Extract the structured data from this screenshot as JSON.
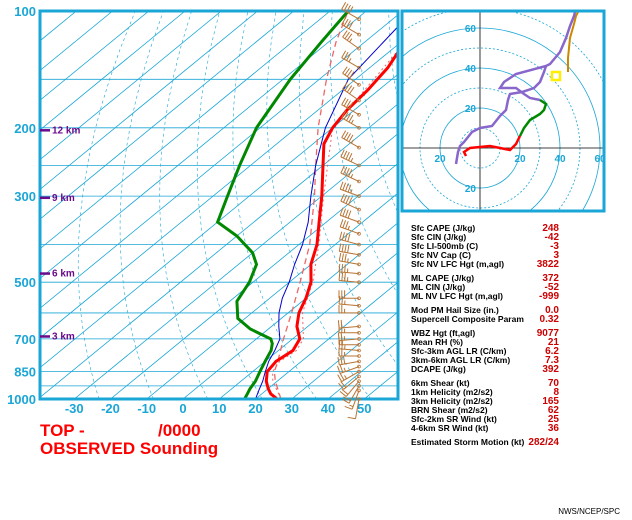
{
  "chart_data": {
    "type": "skew-t",
    "title_line1": "TOP -",
    "title_valid": "/0000",
    "title_line2": "OBSERVED Sounding",
    "pressure_ticks": [
      100,
      200,
      300,
      500,
      700,
      850,
      1000
    ],
    "temperature_ticks": [
      -30,
      -20,
      -10,
      0,
      10,
      20,
      30,
      40,
      50
    ],
    "height_markers": [
      {
        "label": "12 km",
        "p": 203
      },
      {
        "label": "9 km",
        "p": 303
      },
      {
        "label": "6 km",
        "p": 475
      },
      {
        "label": "3 km",
        "p": 690
      }
    ],
    "temperature": [
      {
        "p": 1000,
        "t": 26
      },
      {
        "p": 970,
        "t": 22.5
      },
      {
        "p": 940,
        "t": 20
      },
      {
        "p": 900,
        "t": 17
      },
      {
        "p": 850,
        "t": 14
      },
      {
        "p": 800,
        "t": 13
      },
      {
        "p": 750,
        "t": 14
      },
      {
        "p": 700,
        "t": 12
      },
      {
        "p": 650,
        "t": 7
      },
      {
        "p": 600,
        "t": 3
      },
      {
        "p": 550,
        "t": 0
      },
      {
        "p": 500,
        "t": -4
      },
      {
        "p": 450,
        "t": -10
      },
      {
        "p": 400,
        "t": -15
      },
      {
        "p": 350,
        "t": -22
      },
      {
        "p": 300,
        "t": -30
      },
      {
        "p": 250,
        "t": -40
      },
      {
        "p": 220,
        "t": -47
      },
      {
        "p": 200,
        "t": -50
      },
      {
        "p": 180,
        "t": -52
      },
      {
        "p": 160,
        "t": -53
      },
      {
        "p": 140,
        "t": -55
      },
      {
        "p": 120,
        "t": -59
      },
      {
        "p": 110,
        "t": -61
      },
      {
        "p": 102,
        "t": -60
      },
      {
        "p": 100,
        "t": -62
      }
    ],
    "dewpoint": [
      {
        "p": 1000,
        "t": 17
      },
      {
        "p": 970,
        "t": 16
      },
      {
        "p": 940,
        "t": 15
      },
      {
        "p": 900,
        "t": 14
      },
      {
        "p": 850,
        "t": 12
      },
      {
        "p": 800,
        "t": 10
      },
      {
        "p": 750,
        "t": 8
      },
      {
        "p": 720,
        "t": 6
      },
      {
        "p": 700,
        "t": 4
      },
      {
        "p": 660,
        "t": -5
      },
      {
        "p": 620,
        "t": -12
      },
      {
        "p": 560,
        "t": -18
      },
      {
        "p": 500,
        "t": -21
      },
      {
        "p": 450,
        "t": -25
      },
      {
        "p": 420,
        "t": -30
      },
      {
        "p": 380,
        "t": -40
      },
      {
        "p": 350,
        "t": -50
      },
      {
        "p": 300,
        "t": -56
      },
      {
        "p": 250,
        "t": -63
      },
      {
        "p": 200,
        "t": -71
      },
      {
        "p": 150,
        "t": -78
      },
      {
        "p": 120,
        "t": -82
      },
      {
        "p": 100,
        "t": -85
      }
    ],
    "parcel_trace": [
      {
        "p": 1000,
        "t": 27
      },
      {
        "p": 900,
        "t": 19.5
      },
      {
        "p": 850,
        "t": 16
      },
      {
        "p": 800,
        "t": 13.5
      },
      {
        "p": 700,
        "t": 7.5
      },
      {
        "p": 600,
        "t": 1
      },
      {
        "p": 500,
        "t": -7
      },
      {
        "p": 400,
        "t": -17
      },
      {
        "p": 300,
        "t": -32
      },
      {
        "p": 250,
        "t": -42
      },
      {
        "p": 200,
        "t": -54
      },
      {
        "p": 150,
        "t": -68
      },
      {
        "p": 120,
        "t": -78
      },
      {
        "p": 100,
        "t": -85
      }
    ],
    "virtual_temperature": [
      {
        "p": 1000,
        "t": 27
      },
      {
        "p": 900,
        "t": 18.8
      },
      {
        "p": 850,
        "t": 15.5
      },
      {
        "p": 800,
        "t": 14
      },
      {
        "p": 750,
        "t": 15
      },
      {
        "p": 700,
        "t": 13
      },
      {
        "p": 600,
        "t": 4
      },
      {
        "p": 500,
        "t": -3.5
      },
      {
        "p": 400,
        "t": -14.5
      },
      {
        "p": 300,
        "t": -29.5
      },
      {
        "p": 200,
        "t": -50
      },
      {
        "p": 100,
        "t": -62
      }
    ],
    "wetbulb": [
      {
        "p": 1000,
        "t": 20
      },
      {
        "p": 950,
        "t": 18
      },
      {
        "p": 900,
        "t": 16
      },
      {
        "p": 850,
        "t": 13.5
      },
      {
        "p": 800,
        "t": 11
      },
      {
        "p": 750,
        "t": 9
      },
      {
        "p": 700,
        "t": 6.5
      },
      {
        "p": 650,
        "t": 2
      },
      {
        "p": 600,
        "t": -2.5
      },
      {
        "p": 550,
        "t": -6.5
      },
      {
        "p": 500,
        "t": -10
      },
      {
        "p": 450,
        "t": -14.5
      },
      {
        "p": 400,
        "t": -19
      },
      {
        "p": 350,
        "t": -25
      },
      {
        "p": 300,
        "t": -33
      },
      {
        "p": 250,
        "t": -42
      },
      {
        "p": 200,
        "t": -52
      },
      {
        "p": 150,
        "t": -62
      },
      {
        "p": 110,
        "t": -66
      },
      {
        "p": 100,
        "t": -67
      }
    ],
    "wind_barbs": [
      {
        "p": 1000,
        "dir": 190,
        "kt": 10
      },
      {
        "p": 950,
        "dir": 200,
        "kt": 15
      },
      {
        "p": 925,
        "dir": 210,
        "kt": 20
      },
      {
        "p": 900,
        "dir": 220,
        "kt": 20
      },
      {
        "p": 875,
        "dir": 230,
        "kt": 20
      },
      {
        "p": 850,
        "dir": 240,
        "kt": 25
      },
      {
        "p": 825,
        "dir": 250,
        "kt": 25
      },
      {
        "p": 800,
        "dir": 260,
        "kt": 30
      },
      {
        "p": 775,
        "dir": 270,
        "kt": 25
      },
      {
        "p": 750,
        "dir": 275,
        "kt": 25
      },
      {
        "p": 725,
        "dir": 270,
        "kt": 20
      },
      {
        "p": 700,
        "dir": 265,
        "kt": 25
      },
      {
        "p": 675,
        "dir": 270,
        "kt": 25
      },
      {
        "p": 650,
        "dir": 265,
        "kt": 20
      },
      {
        "p": 600,
        "dir": 270,
        "kt": 25
      },
      {
        "p": 575,
        "dir": 275,
        "kt": 25
      },
      {
        "p": 550,
        "dir": 270,
        "kt": 30
      },
      {
        "p": 500,
        "dir": 275,
        "kt": 35
      },
      {
        "p": 475,
        "dir": 275,
        "kt": 35
      },
      {
        "p": 450,
        "dir": 280,
        "kt": 35
      },
      {
        "p": 425,
        "dir": 280,
        "kt": 40
      },
      {
        "p": 400,
        "dir": 285,
        "kt": 40
      },
      {
        "p": 375,
        "dir": 290,
        "kt": 35
      },
      {
        "p": 350,
        "dir": 290,
        "kt": 40
      },
      {
        "p": 325,
        "dir": 295,
        "kt": 40
      },
      {
        "p": 300,
        "dir": 290,
        "kt": 45
      },
      {
        "p": 275,
        "dir": 295,
        "kt": 45
      },
      {
        "p": 250,
        "dir": 295,
        "kt": 45
      },
      {
        "p": 225,
        "dir": 300,
        "kt": 45
      },
      {
        "p": 200,
        "dir": 300,
        "kt": 45
      },
      {
        "p": 185,
        "dir": 300,
        "kt": 40
      },
      {
        "p": 170,
        "dir": 305,
        "kt": 40
      },
      {
        "p": 155,
        "dir": 305,
        "kt": 40
      },
      {
        "p": 140,
        "dir": 300,
        "kt": 35
      },
      {
        "p": 125,
        "dir": 305,
        "kt": 35
      },
      {
        "p": 115,
        "dir": 300,
        "kt": 40
      },
      {
        "p": 105,
        "dir": 300,
        "kt": 40
      }
    ],
    "hodograph": {
      "ring_labels": [
        20,
        40,
        60
      ],
      "rings_kt": [
        10,
        20,
        30,
        40,
        50,
        60,
        70
      ],
      "lower": [
        {
          "u": -7,
          "v": -4
        },
        {
          "u": -8,
          "v": -2
        },
        {
          "u": -5,
          "v": 0
        },
        {
          "u": 5,
          "v": 1
        },
        {
          "u": 10,
          "v": 0
        },
        {
          "u": 15,
          "v": -1
        },
        {
          "u": 18,
          "v": 2
        },
        {
          "u": 20,
          "v": 6
        }
      ],
      "middle": [
        {
          "u": 20,
          "v": 6
        },
        {
          "u": 22,
          "v": 10
        },
        {
          "u": 25,
          "v": 14
        },
        {
          "u": 30,
          "v": 17
        },
        {
          "u": 32,
          "v": 19
        },
        {
          "u": 33,
          "v": 22
        },
        {
          "u": 30,
          "v": 24
        }
      ],
      "upper": [
        {
          "u": 30,
          "v": 24
        },
        {
          "u": 25,
          "v": 25
        },
        {
          "u": 22,
          "v": 27
        },
        {
          "u": 18,
          "v": 30
        },
        {
          "u": 10,
          "v": 30
        },
        {
          "u": 12,
          "v": 33
        },
        {
          "u": 18,
          "v": 37
        },
        {
          "u": 33,
          "v": 41
        },
        {
          "u": 35,
          "v": 42
        },
        {
          "u": 40,
          "v": 48
        },
        {
          "u": 43,
          "v": 55
        },
        {
          "u": 45,
          "v": 61
        },
        {
          "u": 47,
          "v": 66
        },
        {
          "u": 48,
          "v": 70
        },
        {
          "u": 46,
          "v": 74
        },
        {
          "u": 45,
          "v": 76
        }
      ],
      "violet": [
        {
          "u": -12,
          "v": -8
        },
        {
          "u": -11,
          "v": -2
        },
        {
          "u": -10,
          "v": 1
        },
        {
          "u": -8,
          "v": 3
        },
        {
          "u": -4,
          "v": 8
        },
        {
          "u": 0,
          "v": 10
        },
        {
          "u": 6,
          "v": 11
        },
        {
          "u": 10,
          "v": 16
        },
        {
          "u": 13,
          "v": 19
        },
        {
          "u": 14,
          "v": 24
        },
        {
          "u": 15,
          "v": 27
        },
        {
          "u": 21,
          "v": 28
        },
        {
          "u": 27,
          "v": 30
        },
        {
          "u": 30,
          "v": 33
        },
        {
          "u": 32,
          "v": 38
        },
        {
          "u": 33,
          "v": 41
        }
      ],
      "orange": [
        {
          "u": 44,
          "v": 38
        },
        {
          "u": 44,
          "v": 45
        },
        {
          "u": 45,
          "v": 55
        },
        {
          "u": 47,
          "v": 62
        },
        {
          "u": 48,
          "v": 66
        },
        {
          "u": 50,
          "v": 70
        },
        {
          "u": 50,
          "v": 74
        }
      ],
      "storm_motion": {
        "u": 38,
        "v": 36
      }
    }
  },
  "indices": [
    {
      "label": "Sfc CAPE (J/kg)",
      "value": "248"
    },
    {
      "label": "Sfc CIN (J/kg)",
      "value": "-42"
    },
    {
      "label": "Sfc LI-500mb (C)",
      "value": "-3"
    },
    {
      "label": "Sfc NV Cap (C)",
      "value": "3"
    },
    {
      "label": "Sfc NV LFC Hgt (m,agl)",
      "value": "3822"
    },
    {
      "label": "ML CAPE (J/kg)",
      "value": "372"
    },
    {
      "label": "ML CIN (J/kg)",
      "value": "-52"
    },
    {
      "label": "ML NV LFC Hgt (m,agl)",
      "value": "-999"
    },
    {
      "label": "Mod PM Hail Size (in.)",
      "value": "0.0"
    },
    {
      "label": "Supercell Composite Param",
      "value": "0.32"
    },
    {
      "label": "WBZ Hgt (ft,agl)",
      "value": "9077"
    },
    {
      "label": "Mean RH (%)",
      "value": "21"
    },
    {
      "label": "Sfc-3km AGL LR (C/km)",
      "value": "6.2"
    },
    {
      "label": "3km-6km AGL LR (C/km)",
      "value": "7.3"
    },
    {
      "label": "DCAPE (J/kg)",
      "value": "392"
    },
    {
      "label": "6km Shear (kt)",
      "value": "70"
    },
    {
      "label": "1km Helicity (m2/s2)",
      "value": "8"
    },
    {
      "label": "3km Helicity (m2/s2)",
      "value": "165"
    },
    {
      "label": "BRN Shear (m2/s2)",
      "value": "62"
    },
    {
      "label": "Sfc-2km SR Wind (kt)",
      "value": "25"
    },
    {
      "label": "4-6km SR Wind (kt)",
      "value": "36"
    },
    {
      "label": "Estimated Storm Motion (kt)",
      "value": "282/24"
    }
  ],
  "credit": "NWS/NCEP/SPC",
  "colors": {
    "frame": "#1aa6d6",
    "grid": "#1aa6d6",
    "temperature": "#ff0000",
    "dewpoint": "#008800",
    "parcel": "#ee6666",
    "wetbulb": "#0000cc",
    "barbs": "#b87333",
    "height_markers": "#6a0a8a",
    "storm_motion": "#ffee00"
  }
}
